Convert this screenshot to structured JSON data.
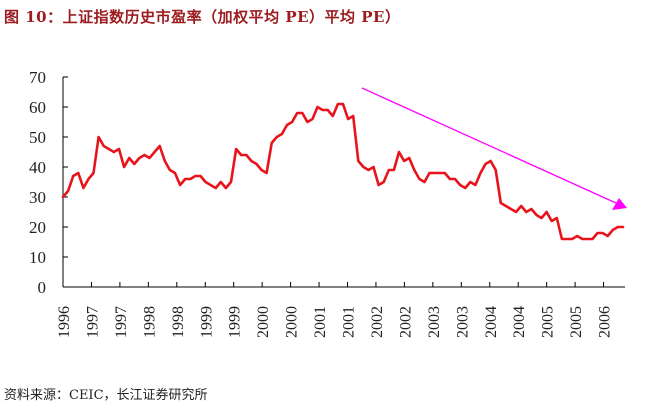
{
  "title": "图 10：上证指数历史市盈率（加权平均 PE）平均 PE）",
  "footer": "资料来源：CEIC，长江证券研究所",
  "colors": {
    "title": "#9B1B1E",
    "series": "#E8141B",
    "trend_arrow": "#FF00FF",
    "axis": "#000000"
  },
  "chart_data": {
    "type": "line",
    "title": "上证指数历史市盈率（加权平均 PE）",
    "xlabel": "",
    "ylabel": "",
    "ylim": [
      0,
      70
    ],
    "yticks": [
      0,
      10,
      20,
      30,
      40,
      50,
      60,
      70
    ],
    "x_tick_labels": [
      "1996",
      "1997",
      "1997",
      "1998",
      "1998",
      "1999",
      "1999",
      "2000",
      "2000",
      "2001",
      "2001",
      "2002",
      "2002",
      "2003",
      "2003",
      "2004",
      "2004",
      "2005",
      "2005",
      "2006"
    ],
    "grid": false,
    "legend": "none",
    "series": [
      {
        "name": "平均 PE",
        "values": [
          30,
          32,
          37,
          38,
          33,
          36,
          38,
          50,
          47,
          46,
          45,
          46,
          40,
          43,
          41,
          43,
          44,
          43,
          45,
          47,
          42,
          39,
          38,
          34,
          36,
          36,
          37,
          37,
          35,
          34,
          33,
          35,
          33,
          35,
          46,
          44,
          44,
          42,
          41,
          39,
          38,
          48,
          50,
          51,
          54,
          55,
          58,
          58,
          55,
          56,
          60,
          59,
          59,
          57,
          61,
          61,
          56,
          57,
          42,
          40,
          39,
          40,
          34,
          35,
          39,
          39,
          45,
          42,
          43,
          39,
          36,
          35,
          38,
          38,
          38,
          38,
          36,
          36,
          34,
          33,
          35,
          34,
          38,
          41,
          42,
          39,
          28,
          27,
          26,
          25,
          27,
          25,
          26,
          24,
          23,
          25,
          22,
          23,
          16,
          16,
          16,
          17,
          16,
          16,
          16,
          18,
          18,
          17,
          19,
          20,
          20
        ]
      }
    ],
    "annotations": [
      {
        "type": "arrow",
        "description": "downward trend arrow",
        "from_approx": [
          "2001",
          66
        ],
        "to_approx": [
          "2006",
          26
        ]
      }
    ]
  }
}
